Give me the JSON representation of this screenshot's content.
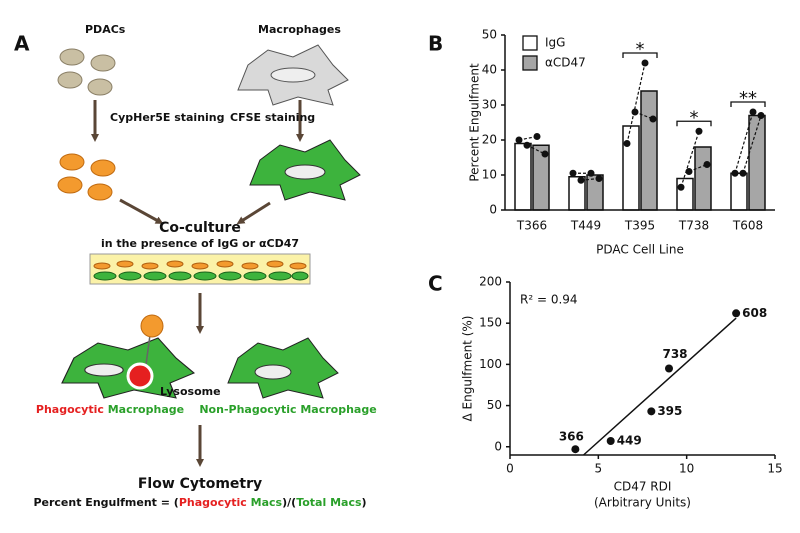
{
  "diagram": {
    "panel": "A",
    "pdacs": "PDACs",
    "macrophages": "Macrophages",
    "stain_pdac": "CypHer5E staining",
    "stain_mac": "CFSE staining",
    "coculture": "Co-culture",
    "condition": "in the presence of IgG or αCD47",
    "lysosome": "Lysosome",
    "phagocytic": [
      "Phagocytic",
      " Macrophage"
    ],
    "non_phagocytic": "Non-Phagocytic Macrophage",
    "flow": "Flow Cytometry",
    "formula": [
      "Percent Engulfment = (",
      "Phagocytic",
      " Macs",
      ")/(",
      "Total Macs",
      ")"
    ]
  },
  "chart_data": [
    {
      "type": "bar",
      "panel": "B",
      "categories": [
        "T366",
        "T449",
        "T395",
        "T738",
        "T608"
      ],
      "xlabel": "PDAC Cell Line",
      "ylabel": "Percent Engulfment",
      "ylim": [
        0,
        50
      ],
      "yticks": [
        0,
        10,
        20,
        30,
        40,
        50
      ],
      "legend": "top-left",
      "series": [
        {
          "name": "IgG",
          "color": "#ffffff",
          "values": [
            19,
            9.5,
            24,
            9,
            10.5
          ],
          "points": [
            [
              20,
              18.5
            ],
            [
              10.5,
              8.5
            ],
            [
              19,
              28
            ],
            [
              6.5,
              11
            ],
            [
              10.5,
              10.5
            ]
          ]
        },
        {
          "name": "αCD47",
          "color": "#a6a6a6",
          "values": [
            18.5,
            10,
            34,
            18,
            27
          ],
          "points": [
            [
              21,
              16
            ],
            [
              10.5,
              9
            ],
            [
              42,
              26
            ],
            [
              22.5,
              13
            ],
            [
              28,
              27
            ]
          ]
        }
      ],
      "significance": [
        null,
        null,
        "*",
        "*",
        "**"
      ]
    },
    {
      "type": "scatter",
      "panel": "C",
      "xlabel": [
        "CD47 RDI",
        "(Arbitrary Units)"
      ],
      "ylabel": "Δ Engulfment (%)",
      "annotation": "R² = 0.94",
      "xlim": [
        0,
        15
      ],
      "xticks": [
        0,
        5,
        10,
        15
      ],
      "ylim": [
        -10,
        200
      ],
      "yticks": [
        0,
        50,
        100,
        150,
        200
      ],
      "color": "#111111",
      "fit": true,
      "x": [
        3.7,
        5.7,
        8,
        9,
        12.8
      ],
      "values": [
        -3,
        7,
        43,
        95,
        162
      ],
      "point_labels": [
        "366",
        "449",
        "395",
        "738",
        "608"
      ]
    }
  ]
}
